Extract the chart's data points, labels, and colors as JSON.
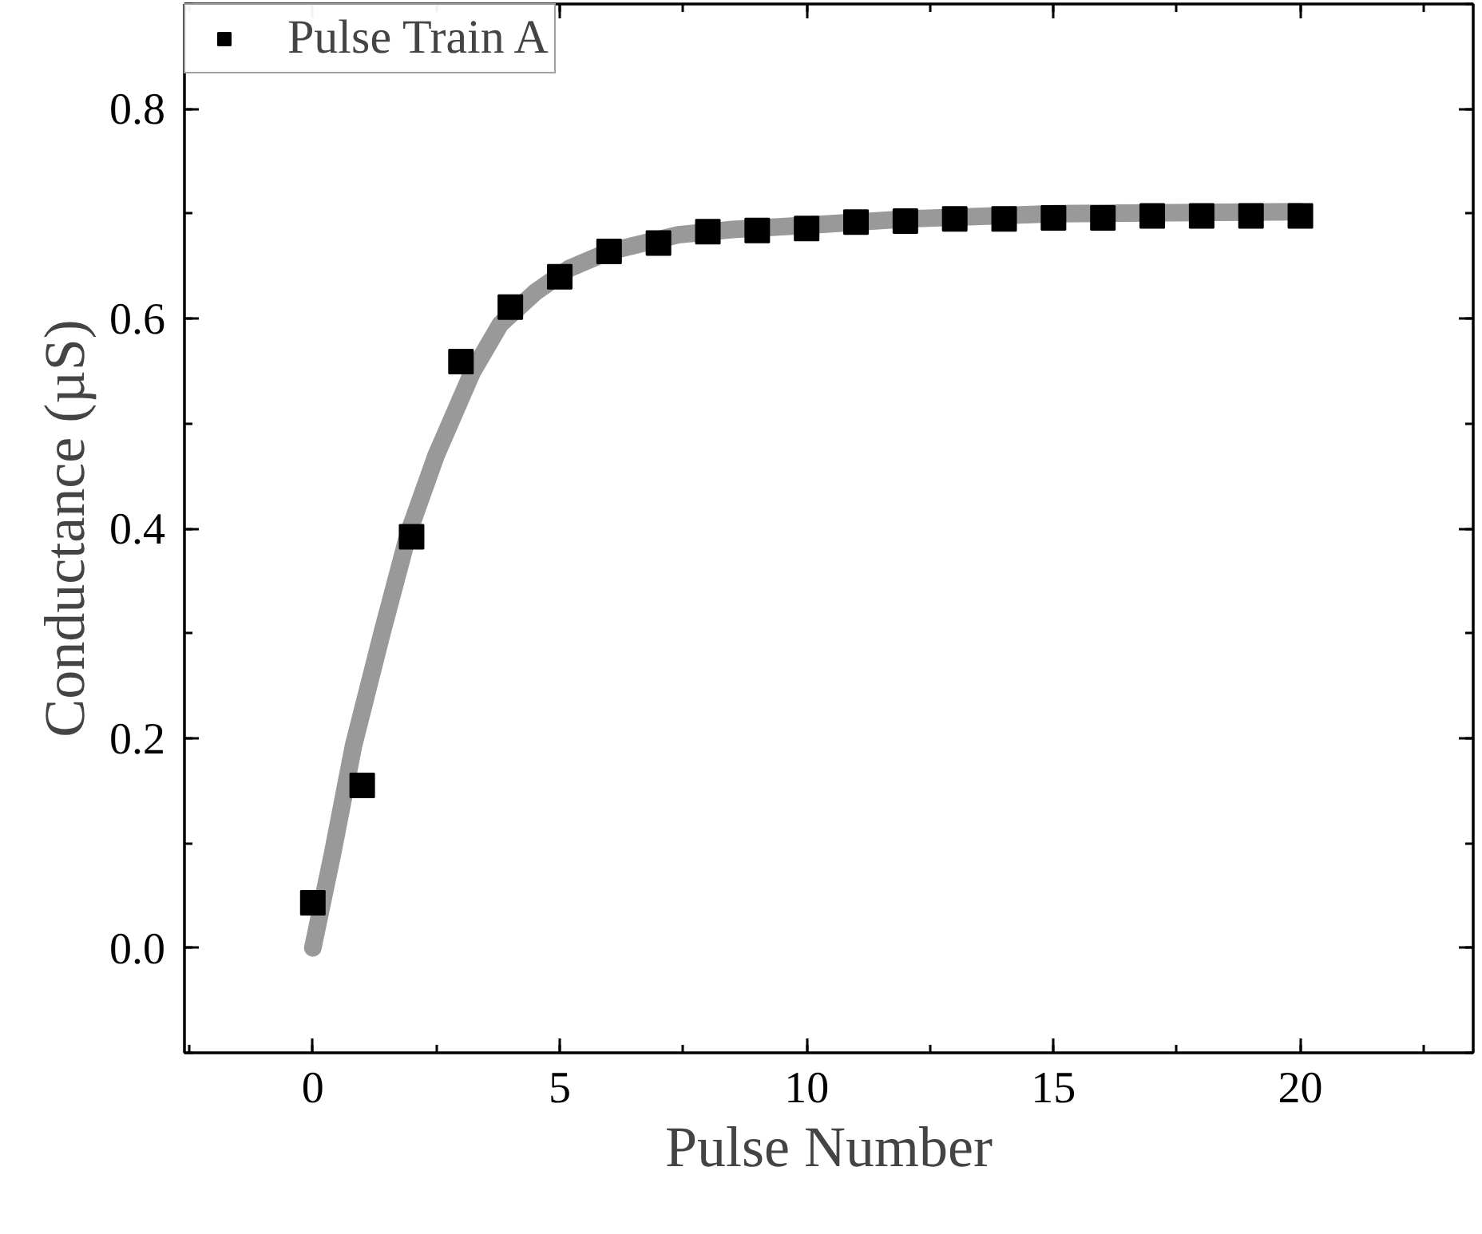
{
  "chart_data": {
    "type": "scatter",
    "xlabel": "Pulse Number",
    "ylabel": "Conductance (µS)",
    "xlim": [
      -2.6,
      23.5
    ],
    "ylim": [
      -0.1,
      0.9
    ],
    "xticks": [
      0,
      5,
      10,
      15,
      20
    ],
    "yticks": [
      {
        "value": 0,
        "label": "0.0"
      },
      {
        "value": 0.2,
        "label": "0.2"
      },
      {
        "value": 0.4,
        "label": "0.4"
      },
      {
        "value": 0.6,
        "label": "0.6"
      },
      {
        "value": 0.8,
        "label": "0.8"
      }
    ],
    "legend": "top left",
    "grid": false,
    "marker": "square",
    "series": [
      {
        "name": "Pulse Train A",
        "color": "#000000",
        "x": [
          0,
          1,
          2,
          3,
          4,
          5,
          6,
          7,
          8,
          9,
          10,
          11,
          12,
          13,
          14,
          15,
          16,
          17,
          18,
          19,
          20
        ],
        "values": [
          0.043,
          0.155,
          0.392,
          0.559,
          0.611,
          0.64,
          0.664,
          0.672,
          0.683,
          0.684,
          0.686,
          0.692,
          0.693,
          0.695,
          0.695,
          0.696,
          0.696,
          0.698,
          0.698,
          0.698,
          0.698
        ]
      },
      {
        "type": "line",
        "color": "#999999",
        "line_style": "solid",
        "marker": "none",
        "x": [
          0,
          0.4,
          0.82,
          1.4,
          1.94,
          2.5,
          3.23,
          3.8,
          4.5,
          5.2,
          6,
          7.4,
          8.5,
          10,
          12,
          15,
          20
        ],
        "values": [
          0,
          0.09,
          0.192,
          0.3,
          0.396,
          0.47,
          0.549,
          0.595,
          0.625,
          0.648,
          0.664,
          0.68,
          0.685,
          0.689,
          0.695,
          0.7,
          0.702
        ]
      }
    ]
  }
}
